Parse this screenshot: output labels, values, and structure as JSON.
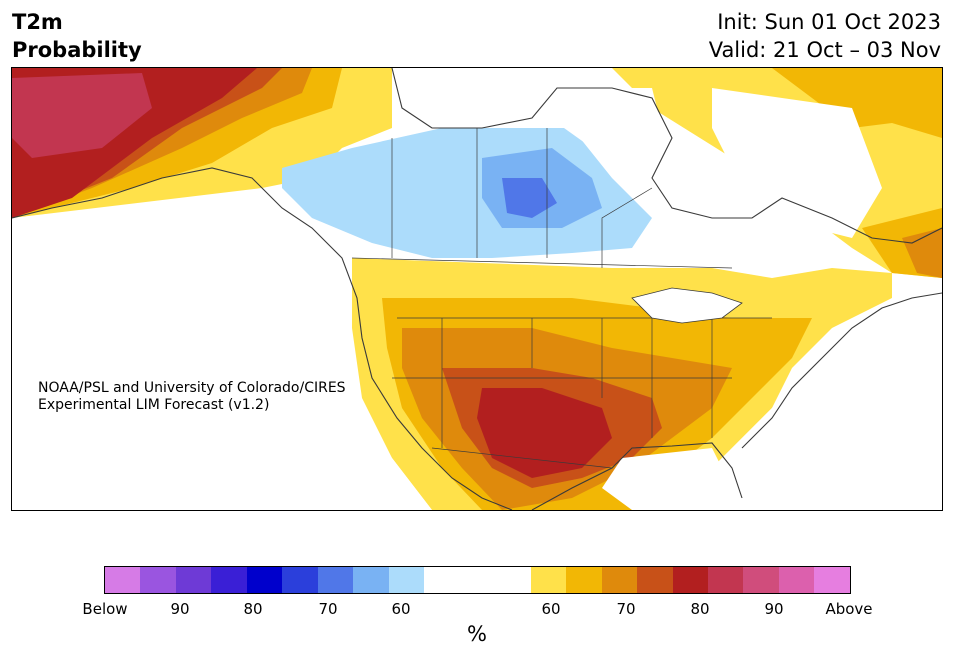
{
  "header": {
    "title_line1": "T2m",
    "title_line2": "Probability",
    "init_line": "Init: Sun 01 Oct 2023",
    "valid_line": "Valid: 21 Oct – 03 Nov"
  },
  "credit": {
    "line1": "NOAA/PSL and University of Colorado/CIRES",
    "line2": "Experimental LIM Forecast (v1.2)"
  },
  "colorbar": {
    "unit": "%",
    "colors": [
      "#d67be6",
      "#9a55e0",
      "#6e3ad6",
      "#3a1fd6",
      "#0000cc",
      "#2b3fdb",
      "#5077e8",
      "#79b2f3",
      "#acdcfb",
      "#ffffff",
      "#ffe14a",
      "#f2b705",
      "#df8a0c",
      "#c85118",
      "#b21f1f",
      "#c23650",
      "#d04d7c",
      "#dc60ad",
      "#e67ee0"
    ],
    "ticks": [
      "Below",
      "90",
      "80",
      "70",
      "60",
      "60",
      "70",
      "80",
      "90",
      "Above"
    ]
  },
  "map_colors": {
    "above_60": "#ffe14a",
    "above_65": "#f2b705",
    "above_70": "#df8a0c",
    "above_75": "#c85118",
    "above_80": "#b21f1f",
    "above_85": "#c23650",
    "below_60": "#acdcfb",
    "below_65": "#79b2f3",
    "below_70": "#5077e8",
    "land_outline": "#3a3a3a"
  }
}
